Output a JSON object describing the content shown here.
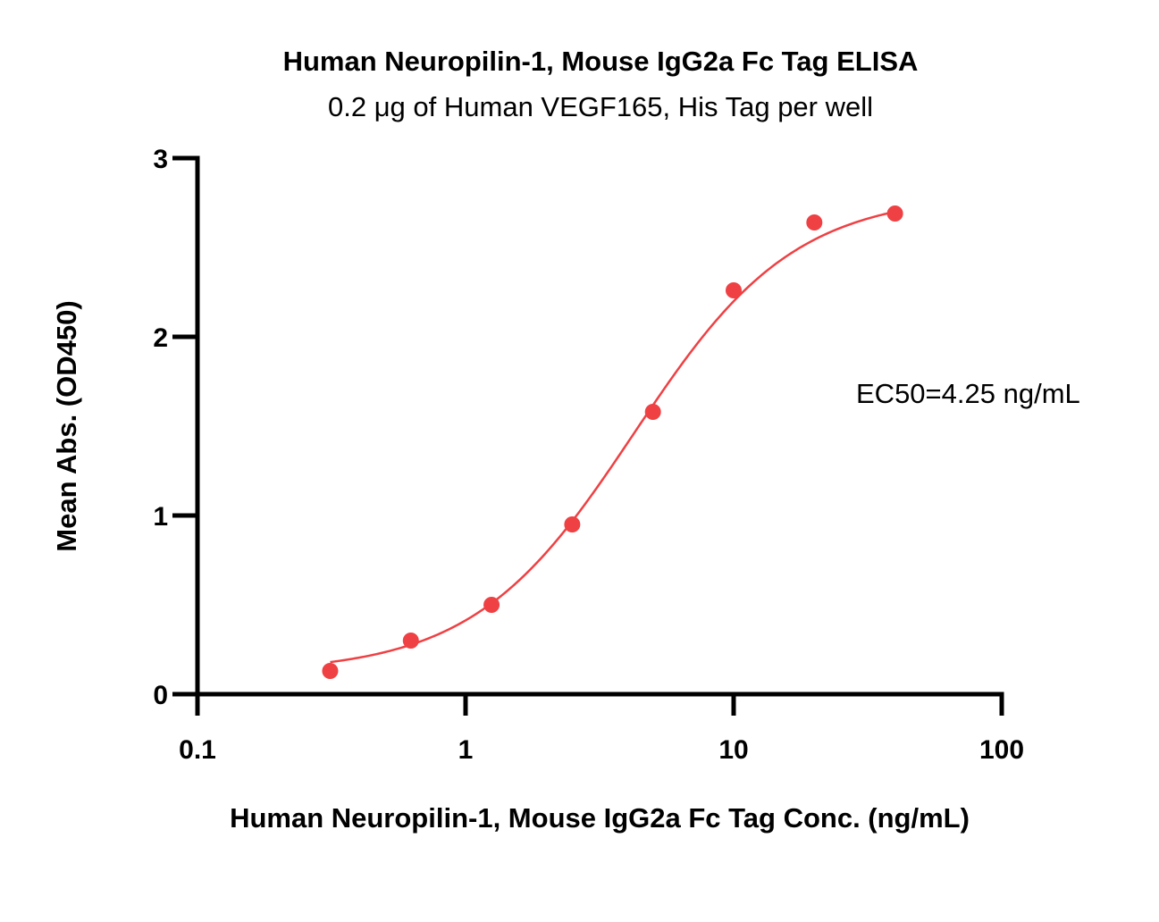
{
  "chart_data": {
    "type": "scatter",
    "title": "Human Neuropilin-1, Mouse IgG2a Fc Tag ELISA",
    "subtitle": "0.2 μg of Human VEGF165, His Tag per well",
    "xlabel": "Human Neuropilin-1, Mouse IgG2a Fc Tag Conc. (ng/mL)",
    "ylabel": "Mean Abs. (OD450)",
    "x_scale": "log",
    "xlim": [
      0.1,
      100
    ],
    "ylim": [
      0,
      3
    ],
    "x_ticks": [
      "0.1",
      "1",
      "10",
      "100"
    ],
    "y_ticks": [
      "0",
      "1",
      "2",
      "3"
    ],
    "grid": false,
    "legend": "none",
    "annotation": "EC50=4.25 ng/mL",
    "series": [
      {
        "x": [
          0.3125,
          0.625,
          1.25,
          2.5,
          5,
          10,
          20,
          40
        ],
        "y": [
          0.13,
          0.3,
          0.5,
          0.95,
          1.58,
          2.26,
          2.64,
          2.69
        ],
        "color": "#ef4043"
      }
    ],
    "fit": {
      "type": "4PL",
      "bottom": 0.12,
      "top": 2.8,
      "ec50": 4.25,
      "hill": 1.45,
      "x_range": [
        0.3125,
        40
      ],
      "color": "#ef4043"
    }
  }
}
